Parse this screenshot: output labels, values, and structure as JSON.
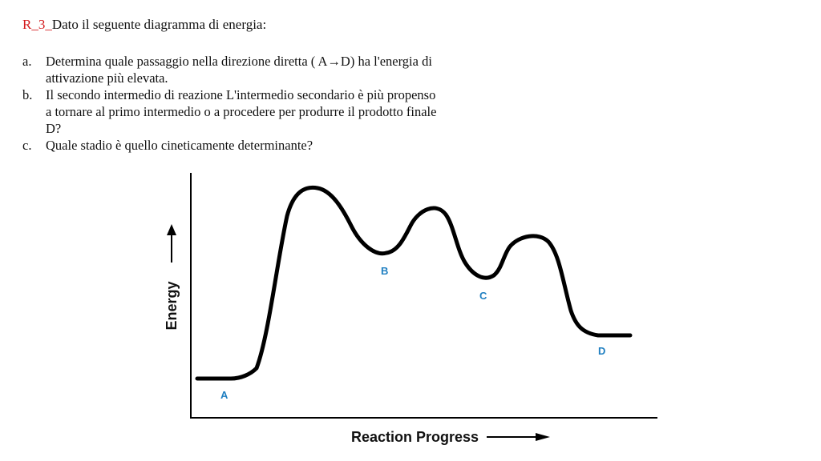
{
  "exercise": {
    "tag": "R_3_",
    "intro": "Dato il seguente diagramma di energia:"
  },
  "questions": [
    {
      "letter": "a.",
      "text": "Determina quale passaggio nella direzione diretta ( A→D) ha l'energia di attivazione più elevata."
    },
    {
      "letter": "b.",
      "text": "Il secondo intermedio di reazione L'intermedio secondario è più propenso a tornare al primo intermedio o a procedere per produrre il prodotto finale D?"
    },
    {
      "letter": "c.",
      "text": "Quale stadio è quello cineticamente determinante?"
    }
  ],
  "diagram": {
    "x_axis_label": "Reaction Progress",
    "y_axis_label": "Energy",
    "points": [
      {
        "label": "A"
      },
      {
        "label": "B"
      },
      {
        "label": "C"
      },
      {
        "label": "D"
      }
    ],
    "curve_color": "#000000",
    "label_color": "#1f7fc1"
  }
}
